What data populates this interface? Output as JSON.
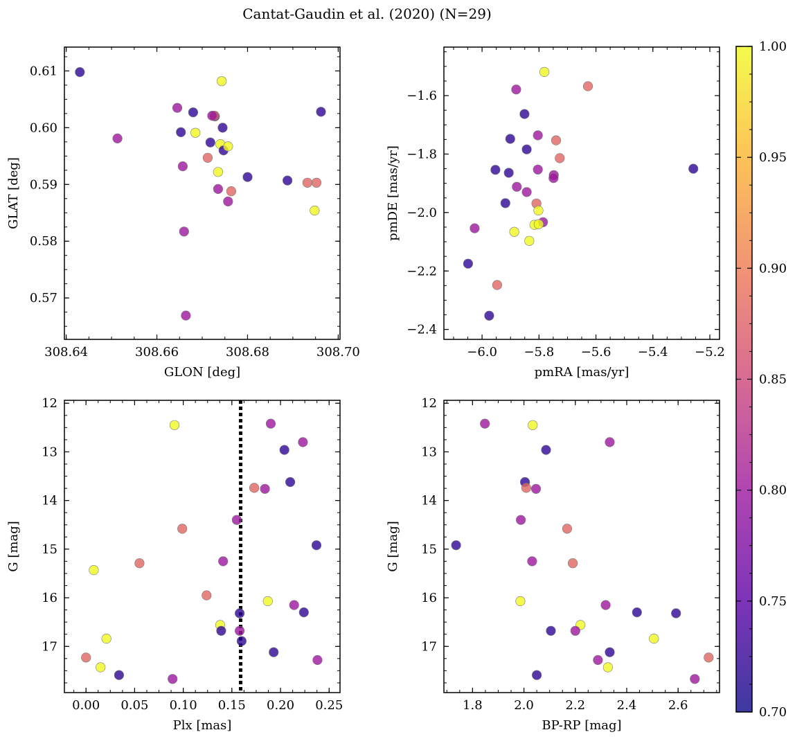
{
  "title": "Cantat-Gaudin et al. (2020) (N=29)",
  "colormap": [
    "#0d0887",
    "#5c01a6",
    "#9c179e",
    "#cc4778",
    "#ed7953",
    "#fdb42f",
    "#f0f921"
  ],
  "colorbar": {
    "range": [
      0.7,
      1.0
    ],
    "ticks": [
      "0.70",
      "0.75",
      "0.80",
      "0.85",
      "0.90",
      "0.95",
      "1.00"
    ]
  },
  "chart_data": [
    {
      "type": "scatter",
      "xlabel": "GLON [deg]",
      "ylabel": "GLAT [deg]",
      "xlim": [
        308.6396,
        308.7004
      ],
      "ylim": [
        0.5627,
        0.6142
      ],
      "xticks": [
        "308.64",
        "308.66",
        "308.68",
        "308.70"
      ],
      "yticks": [
        "0.57",
        "0.58",
        "0.59",
        "0.60",
        "0.61"
      ],
      "x": [
        308.643,
        308.6513,
        308.6645,
        308.6657,
        308.668,
        308.6653,
        308.6685,
        308.6718,
        308.674,
        308.6728,
        308.666,
        308.6712,
        308.6735,
        308.6757,
        308.6764,
        308.6747,
        308.6757,
        308.6743,
        308.6727,
        308.6745,
        308.68,
        308.6888,
        308.6948,
        308.6952,
        308.6962,
        308.6932,
        308.6722,
        308.6735,
        308.6664
      ],
      "y": [
        0.6098,
        0.5981,
        0.6035,
        0.5932,
        0.6027,
        0.5992,
        0.5991,
        0.5974,
        0.5971,
        0.602,
        0.5817,
        0.5947,
        0.5892,
        0.587,
        0.5888,
        0.596,
        0.5967,
        0.6082,
        0.6021,
        0.6,
        0.5913,
        0.5907,
        0.5854,
        0.5903,
        0.6028,
        0.5903,
        0.6021,
        0.5922,
        0.5669
      ],
      "c": [
        0.72,
        0.8,
        0.8,
        0.8,
        0.72,
        0.72,
        1.0,
        0.72,
        1.0,
        0.72,
        0.8,
        0.88,
        0.8,
        0.8,
        0.88,
        0.72,
        1.0,
        1.0,
        0.88,
        0.72,
        0.72,
        0.72,
        1.0,
        0.88,
        0.72,
        0.88,
        0.8,
        1.0,
        0.8
      ]
    },
    {
      "type": "scatter",
      "xlabel": "pmRA [mas/yr]",
      "ylabel": "pmDE [mas/yr]",
      "xlim": [
        -6.134,
        -5.166
      ],
      "ylim": [
        -2.434,
        -1.434
      ],
      "xticks": [
        "−6.0",
        "−5.8",
        "−5.6",
        "−5.4",
        "−5.2"
      ],
      "yticks": [
        "−1.6",
        "−1.8",
        "−2.0",
        "−2.2",
        "−2.4"
      ],
      "x": [
        -5.781,
        -5.628,
        -5.88,
        -5.851,
        -5.901,
        -5.804,
        -5.843,
        -5.74,
        -5.727,
        -5.953,
        -5.906,
        -5.804,
        -5.878,
        -5.843,
        -5.748,
        -5.749,
        -5.918,
        -5.809,
        -5.802,
        -5.786,
        -5.887,
        -5.816,
        -5.801,
        -5.834,
        -6.026,
        -6.049,
        -5.947,
        -5.975,
        -5.258
      ],
      "y": [
        -1.519,
        -1.568,
        -1.579,
        -1.663,
        -1.748,
        -1.736,
        -1.784,
        -1.753,
        -1.814,
        -1.854,
        -1.864,
        -1.853,
        -1.912,
        -1.93,
        -1.872,
        -1.882,
        -1.968,
        -1.969,
        -1.993,
        -2.033,
        -2.066,
        -2.042,
        -2.04,
        -2.097,
        -2.054,
        -2.175,
        -2.248,
        -2.353,
        -1.85
      ],
      "c": [
        1.0,
        0.88,
        0.8,
        0.72,
        0.72,
        0.8,
        0.72,
        0.88,
        0.88,
        0.72,
        0.72,
        0.8,
        0.8,
        0.8,
        0.8,
        0.8,
        0.72,
        0.88,
        1.0,
        0.8,
        1.0,
        1.0,
        1.0,
        1.0,
        0.8,
        0.72,
        0.88,
        0.72,
        0.72
      ]
    },
    {
      "type": "scatter",
      "xlabel": "Plx [mas]",
      "ylabel": "G [mag]",
      "y_inverted": true,
      "xlim": [
        -0.0222,
        0.2612
      ],
      "ylim": [
        17.95,
        11.94
      ],
      "xticks": [
        "0.00",
        "0.05",
        "0.10",
        "0.15",
        "0.20",
        "0.25"
      ],
      "yticks": [
        "12",
        "13",
        "14",
        "15",
        "16",
        "17"
      ],
      "vline": 0.159,
      "x": [
        0.091,
        0.19,
        0.223,
        0.204,
        0.21,
        0.173,
        0.184,
        0.155,
        0.099,
        0.237,
        0.141,
        0.055,
        0.008,
        0.124,
        0.187,
        0.214,
        0.224,
        0.158,
        0.138,
        0.139,
        0.158,
        0.021,
        0.16,
        0.193,
        0.0,
        0.015,
        0.238,
        0.034,
        0.089
      ],
      "y": [
        12.45,
        12.42,
        12.8,
        12.96,
        13.62,
        13.74,
        13.76,
        14.4,
        14.58,
        14.92,
        15.25,
        15.29,
        15.43,
        15.95,
        16.07,
        16.15,
        16.3,
        16.32,
        16.56,
        16.68,
        16.68,
        16.84,
        16.89,
        17.12,
        17.23,
        17.43,
        17.28,
        17.59,
        17.67
      ],
      "c": [
        1.0,
        0.8,
        0.8,
        0.72,
        0.72,
        0.88,
        0.8,
        0.8,
        0.88,
        0.72,
        0.8,
        0.88,
        1.0,
        0.88,
        1.0,
        0.8,
        0.72,
        0.72,
        1.0,
        0.72,
        0.8,
        1.0,
        0.72,
        0.72,
        0.88,
        1.0,
        0.8,
        0.72,
        0.8
      ]
    },
    {
      "type": "scatter",
      "xlabel": "BP-RP [mag]",
      "ylabel": "G [mag]",
      "y_inverted": true,
      "xlim": [
        1.6885,
        2.7612
      ],
      "ylim": [
        17.95,
        11.94
      ],
      "xticks": [
        "1.8",
        "2.0",
        "2.2",
        "2.4",
        "2.6"
      ],
      "yticks": [
        "12",
        "13",
        "14",
        "15",
        "16",
        "17"
      ],
      "x": [
        1.848,
        2.034,
        2.334,
        2.086,
        2.004,
        2.009,
        2.047,
        1.988,
        2.168,
        1.736,
        2.032,
        2.19,
        1.986,
        2.318,
        2.44,
        2.592,
        2.22,
        2.105,
        2.2,
        2.506,
        2.334,
        2.288,
        2.327,
        2.719,
        2.05,
        2.665
      ],
      "y": [
        12.42,
        12.45,
        12.8,
        12.96,
        13.62,
        13.74,
        13.76,
        14.4,
        14.58,
        14.92,
        15.25,
        15.29,
        16.07,
        16.15,
        16.3,
        16.32,
        16.56,
        16.68,
        16.68,
        16.84,
        17.12,
        17.28,
        17.43,
        17.23,
        17.59,
        17.67
      ],
      "c": [
        0.8,
        1.0,
        0.8,
        0.72,
        0.72,
        0.88,
        0.8,
        0.8,
        0.88,
        0.72,
        0.8,
        0.88,
        1.0,
        0.8,
        0.72,
        0.72,
        1.0,
        0.72,
        0.8,
        1.0,
        0.72,
        0.8,
        1.0,
        0.88,
        0.72,
        0.8
      ]
    }
  ]
}
